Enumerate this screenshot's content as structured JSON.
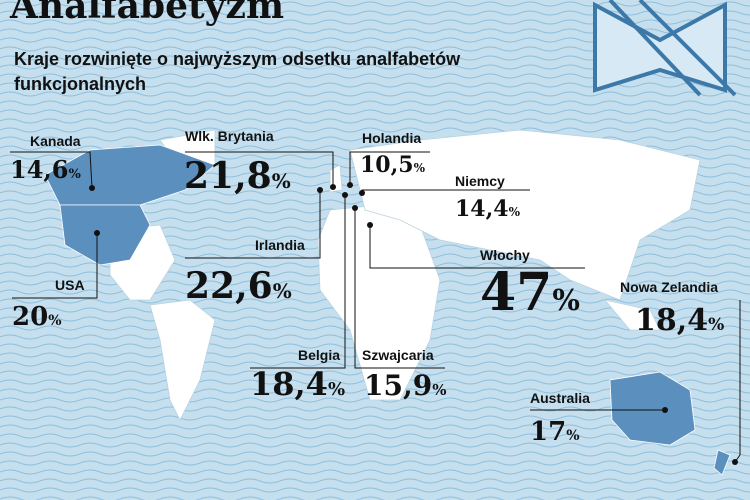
{
  "header": {
    "title": "Analfabetyzm",
    "subtitle_lines": [
      "Kraje rozwinięte o najwyższym odsetku analfabetów",
      "funkcjonalnych"
    ]
  },
  "unit": "%",
  "countries": [
    {
      "name": "Kanada",
      "value_label": "14,6"
    },
    {
      "name": "USA",
      "value_label": "20"
    },
    {
      "name": "Wlk. Brytania",
      "value_label": "21,8"
    },
    {
      "name": "Holandia",
      "value_label": "10,5"
    },
    {
      "name": "Niemcy",
      "value_label": "14,4"
    },
    {
      "name": "Irlandia",
      "value_label": "22,6"
    },
    {
      "name": "Włochy",
      "value_label": "47"
    },
    {
      "name": "Belgia",
      "value_label": "18,4"
    },
    {
      "name": "Szwajcaria",
      "value_label": "15,9"
    },
    {
      "name": "Australia",
      "value_label": "17"
    },
    {
      "name": "Nowa Zelandia",
      "value_label": "18,4"
    }
  ]
}
